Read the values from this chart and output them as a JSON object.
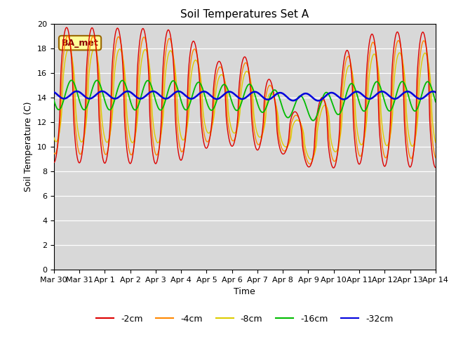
{
  "title": "Soil Temperatures Set A",
  "xlabel": "Time",
  "ylabel": "Soil Temperature (C)",
  "ylim": [
    0,
    20
  ],
  "yticks": [
    0,
    2,
    4,
    6,
    8,
    10,
    12,
    14,
    16,
    18,
    20
  ],
  "annotation": "BA_met",
  "plot_bg_color": "#d8d8d8",
  "fig_bg_color": "#ffffff",
  "grid_color": "#ffffff",
  "line_colors": {
    "-2cm": "#dd0000",
    "-4cm": "#ff8800",
    "-8cm": "#ddcc00",
    "-16cm": "#00bb00",
    "-32cm": "#0000dd"
  },
  "x_tick_labels": [
    "Mar 30",
    "Mar 31",
    "Apr 1",
    "Apr 2",
    "Apr 3",
    "Apr 4",
    "Apr 5",
    "Apr 6",
    "Apr 7",
    "Apr 8",
    "Apr 9",
    "Apr 10",
    "Apr 11",
    "Apr 12",
    "Apr 13",
    "Apr 14"
  ],
  "annotation_facecolor": "#ffff99",
  "annotation_edgecolor": "#996600",
  "annotation_textcolor": "#880000"
}
